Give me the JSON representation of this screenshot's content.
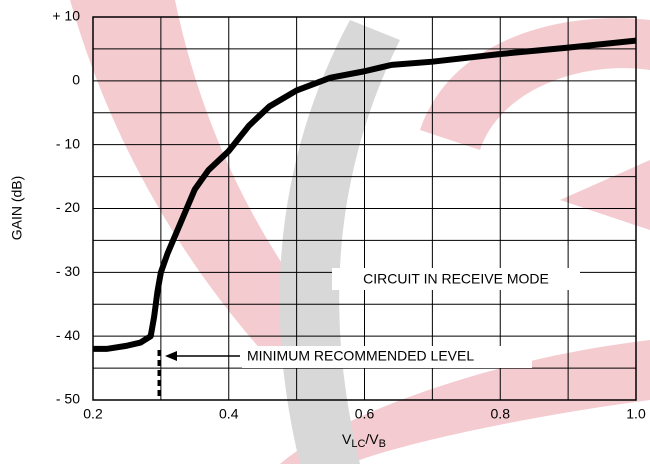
{
  "chart_data": {
    "type": "line",
    "y_label": "GAIN (dB)",
    "x_label": [
      "V",
      "LC",
      "/V",
      "B"
    ],
    "x": [
      0.2,
      0.22,
      0.25,
      0.27,
      0.285,
      0.29,
      0.295,
      0.3,
      0.31,
      0.33,
      0.35,
      0.37,
      0.4,
      0.43,
      0.46,
      0.5,
      0.55,
      0.6,
      0.64,
      0.7,
      0.8,
      0.9,
      1.0
    ],
    "series": [
      {
        "color": "#000000",
        "values": [
          -42,
          -42,
          -41.5,
          -41,
          -40,
          -37,
          -33,
          -30,
          -27,
          -22,
          -17,
          -14,
          -11,
          -7,
          -4,
          -1.5,
          0.5,
          1.5,
          2.5,
          3,
          4.2,
          5.2,
          6.3
        ]
      }
    ],
    "xlim": [
      0.2,
      1.0
    ],
    "ylim": [
      -50,
      10
    ],
    "xticks": [
      0.2,
      0.4,
      0.6,
      0.8,
      {
        "value": 1.0,
        "label": "1.0"
      }
    ],
    "yticks": [
      {
        "value": 10,
        "label": "+ 10"
      },
      0,
      {
        "value": -10,
        "label": "- 10"
      },
      {
        "value": -20,
        "label": "- 20"
      },
      {
        "value": -30,
        "label": "- 30"
      },
      {
        "value": -40,
        "label": "- 40"
      },
      {
        "value": -50,
        "label": "- 50"
      }
    ],
    "x_minor_ticks": [
      0.3,
      0.5,
      0.7,
      0.9
    ],
    "y_minor_ticks": [
      5,
      -5,
      -15,
      -25,
      -35,
      -45
    ],
    "grid": true,
    "annotations": [
      "CIRCUIT IN RECEIVE MODE",
      "MINIMUM RECOMMENDED LEVEL"
    ]
  }
}
